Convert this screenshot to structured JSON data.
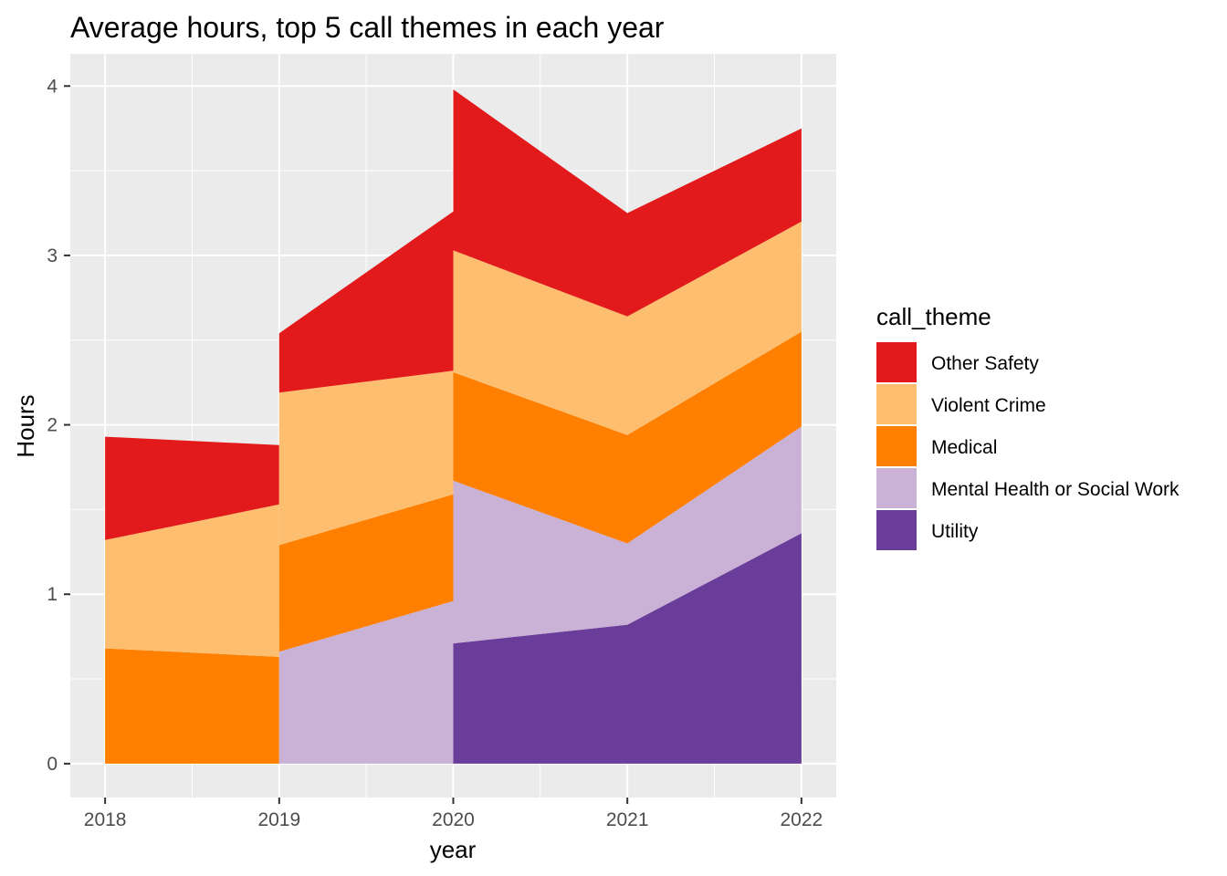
{
  "chart_data": {
    "type": "area",
    "title": "Average hours, top 5 call themes in each year",
    "xlabel": "year",
    "ylabel": "Hours",
    "x_ticks": [
      "2018",
      "2019",
      "2020",
      "2021",
      "2022"
    ],
    "y_ticks": [
      "0",
      "1",
      "2",
      "3",
      "4"
    ],
    "xlim": [
      2017.8,
      2022.2
    ],
    "ylim": [
      -0.2,
      4.19
    ],
    "grid": true,
    "legend_title": "call_theme",
    "legend_position": "right",
    "stack_order_top_to_bottom": [
      "Other Safety",
      "Violent Crime",
      "Medical",
      "Mental Health or Social Work",
      "Utility"
    ],
    "segments": [
      {
        "x": [
          2018,
          2019
        ],
        "series": [
          {
            "name": "Medical",
            "values": [
              0.68,
              0.63
            ]
          },
          {
            "name": "Violent Crime",
            "values": [
              0.64,
              0.9
            ]
          },
          {
            "name": "Other Safety",
            "values": [
              0.61,
              0.35
            ]
          }
        ]
      },
      {
        "x": [
          2019,
          2020
        ],
        "series": [
          {
            "name": "Mental Health or Social Work",
            "values": [
              0.66,
              0.96
            ]
          },
          {
            "name": "Medical",
            "values": [
              0.63,
              0.63
            ]
          },
          {
            "name": "Violent Crime",
            "values": [
              0.9,
              0.73
            ]
          },
          {
            "name": "Other Safety",
            "values": [
              0.35,
              0.94
            ]
          }
        ]
      },
      {
        "x": [
          2020,
          2021,
          2022
        ],
        "series": [
          {
            "name": "Utility",
            "values": [
              0.71,
              0.82,
              1.36
            ]
          },
          {
            "name": "Mental Health or Social Work",
            "values": [
              0.96,
              0.48,
              0.63
            ]
          },
          {
            "name": "Medical",
            "values": [
              0.64,
              0.64,
              0.56
            ]
          },
          {
            "name": "Violent Crime",
            "values": [
              0.72,
              0.7,
              0.65
            ]
          },
          {
            "name": "Other Safety",
            "values": [
              0.95,
              0.61,
              0.55
            ]
          }
        ]
      }
    ],
    "colors": {
      "Other Safety": "#e31a1c",
      "Violent Crime": "#fdbf6f",
      "Medical": "#ff7f00",
      "Mental Health or Social Work": "#cab2d6",
      "Utility": "#6a3d9a"
    },
    "panel_background": "#ebebeb",
    "grid_color": "#ffffff"
  }
}
